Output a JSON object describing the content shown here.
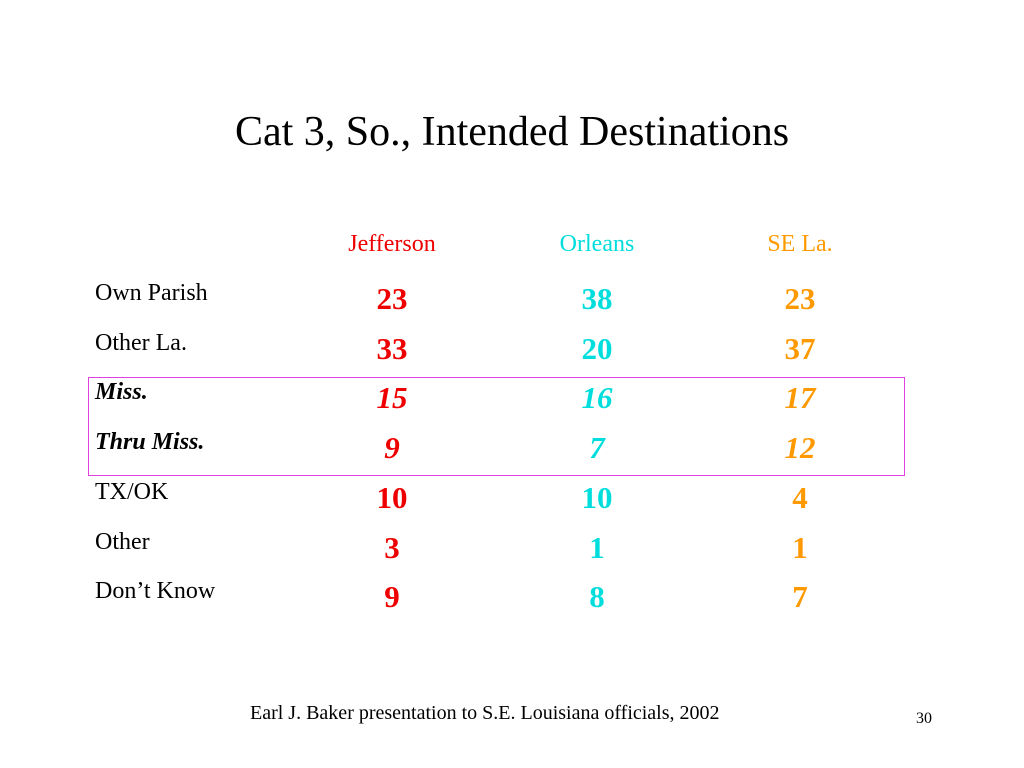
{
  "header": {
    "title": "Cat 3, So., Intended Destinations"
  },
  "table": {
    "columns": [
      "Jefferson",
      "Orleans",
      "SE La."
    ],
    "rows": [
      {
        "label": "Own Parish",
        "values": [
          23,
          38,
          23
        ]
      },
      {
        "label": "Other La.",
        "values": [
          33,
          20,
          37
        ]
      },
      {
        "label": "Miss.",
        "values": [
          15,
          16,
          17
        ]
      },
      {
        "label": "Thru Miss.",
        "values": [
          9,
          7,
          12
        ]
      },
      {
        "label": "TX/OK",
        "values": [
          10,
          10,
          4
        ]
      },
      {
        "label": "Other",
        "values": [
          3,
          1,
          1
        ]
      },
      {
        "label": "Don’t Know",
        "values": [
          9,
          8,
          7
        ]
      }
    ]
  },
  "footer": {
    "text": "Earl J. Baker presentation to S.E. Louisiana officials, 2002",
    "page": "30"
  }
}
